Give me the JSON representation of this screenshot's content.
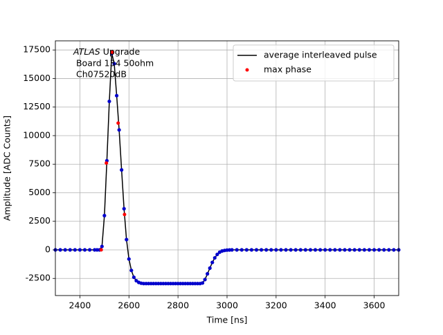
{
  "chart_data": {
    "type": "line",
    "xlabel": "Time [ns]",
    "ylabel": "Amplitude [ADC Counts]",
    "annotation": {
      "italic": "ATLAS",
      "lines": [
        "Upgrade",
        " Board 134 50ohm",
        " Ch07520dB"
      ]
    },
    "xlim": [
      2300,
      3700
    ],
    "xticks": [
      2400,
      2600,
      2800,
      3000,
      3200,
      3400,
      3600
    ],
    "ylim": [
      -4000,
      18300
    ],
    "yticks": [
      -2500,
      0,
      2500,
      5000,
      7500,
      10000,
      12500,
      15000,
      17500
    ],
    "grid": true,
    "legend": "upper right",
    "series": [
      {
        "name": "average interleaved pulse",
        "color": "#000000",
        "marker_color": "#0000cc",
        "x": [
          2300,
          2320,
          2340,
          2360,
          2380,
          2400,
          2420,
          2440,
          2460,
          2470,
          2480,
          2490,
          2500,
          2510,
          2520,
          2530,
          2540,
          2550,
          2560,
          2570,
          2580,
          2590,
          2600,
          2610,
          2620,
          2630,
          2640,
          2650,
          2660,
          2670,
          2680,
          2690,
          2700,
          2710,
          2720,
          2730,
          2740,
          2750,
          2760,
          2770,
          2780,
          2790,
          2800,
          2810,
          2820,
          2830,
          2840,
          2850,
          2860,
          2870,
          2880,
          2890,
          2900,
          2910,
          2920,
          2930,
          2940,
          2950,
          2960,
          2970,
          2980,
          2990,
          3000,
          3010,
          3020,
          3040,
          3060,
          3080,
          3100,
          3120,
          3140,
          3160,
          3180,
          3200,
          3220,
          3240,
          3260,
          3280,
          3300,
          3320,
          3340,
          3360,
          3380,
          3400,
          3420,
          3440,
          3460,
          3480,
          3500,
          3520,
          3540,
          3560,
          3580,
          3600,
          3620,
          3640,
          3660,
          3680,
          3700
        ],
        "values": [
          0,
          0,
          0,
          0,
          0,
          0,
          0,
          0,
          0,
          0,
          0,
          300,
          3000,
          7800,
          13000,
          17200,
          16300,
          13500,
          10500,
          7000,
          3600,
          900,
          -800,
          -1800,
          -2400,
          -2700,
          -2850,
          -2920,
          -2950,
          -2950,
          -2950,
          -2950,
          -2950,
          -2950,
          -2950,
          -2950,
          -2950,
          -2950,
          -2950,
          -2950,
          -2950,
          -2950,
          -2950,
          -2950,
          -2950,
          -2950,
          -2950,
          -2950,
          -2950,
          -2950,
          -2950,
          -2950,
          -2900,
          -2600,
          -2100,
          -1600,
          -1100,
          -700,
          -400,
          -200,
          -100,
          -50,
          -20,
          -10,
          0,
          0,
          0,
          0,
          0,
          0,
          0,
          0,
          0,
          0,
          0,
          0,
          0,
          0,
          0,
          0,
          0,
          0,
          0,
          0,
          0,
          0,
          0,
          0,
          0,
          0,
          0,
          0,
          0,
          0,
          0,
          0,
          0,
          0,
          0
        ]
      },
      {
        "name": "max phase",
        "color": "#ff0000",
        "style": "points",
        "x": [
          2487,
          2508,
          2531,
          2556,
          2582
        ],
        "values": [
          0,
          7600,
          17300,
          11100,
          3100
        ]
      }
    ]
  }
}
